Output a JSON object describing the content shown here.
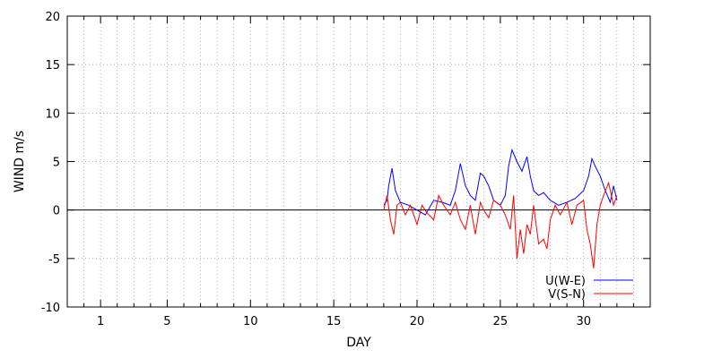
{
  "chart_data": {
    "type": "line",
    "xlabel": "DAY",
    "ylabel": "WIND m/s",
    "xlim": [
      -1,
      34
    ],
    "ylim": [
      -10,
      20
    ],
    "x_ticks": [
      1,
      5,
      10,
      15,
      20,
      25,
      30
    ],
    "y_ticks": [
      -10,
      -5,
      0,
      5,
      10,
      15,
      20
    ],
    "x_minor_step": 1,
    "y_grid_step": 5,
    "grid": true,
    "zero_line": true,
    "legend_position": "bottom-right",
    "series": [
      {
        "name": "U(W-E)",
        "color": "#0000ff",
        "x": [
          18.0,
          18.2,
          18.3,
          18.5,
          18.7,
          19.0,
          19.5,
          20.0,
          20.5,
          21.0,
          21.5,
          22.0,
          22.3,
          22.6,
          22.9,
          23.2,
          23.5,
          23.8,
          24.0,
          24.3,
          24.6,
          25.0,
          25.3,
          25.5,
          25.7,
          26.0,
          26.3,
          26.6,
          26.8,
          27.0,
          27.3,
          27.6,
          28.0,
          28.5,
          29.0,
          29.5,
          30.0,
          30.3,
          30.5,
          30.7,
          31.0,
          31.3,
          31.6,
          31.8,
          32.0
        ],
        "values": [
          0.5,
          1.0,
          2.5,
          4.3,
          2.0,
          0.8,
          0.5,
          0.0,
          -0.5,
          1.0,
          0.8,
          0.5,
          2.0,
          4.8,
          2.5,
          1.5,
          1.0,
          3.8,
          3.5,
          2.5,
          1.0,
          0.5,
          1.5,
          4.5,
          6.2,
          5.0,
          4.0,
          5.5,
          3.5,
          2.0,
          1.5,
          1.8,
          1.0,
          0.5,
          0.8,
          1.2,
          2.0,
          3.5,
          5.3,
          4.5,
          3.5,
          2.0,
          0.8,
          2.5,
          1.0
        ]
      },
      {
        "name": "V(S-N)",
        "color": "#ff0000",
        "x": [
          18.0,
          18.2,
          18.4,
          18.6,
          18.8,
          19.0,
          19.3,
          19.6,
          20.0,
          20.3,
          20.6,
          21.0,
          21.3,
          21.6,
          22.0,
          22.3,
          22.6,
          22.9,
          23.2,
          23.5,
          23.8,
          24.0,
          24.3,
          24.6,
          25.0,
          25.3,
          25.6,
          25.8,
          26.0,
          26.2,
          26.4,
          26.6,
          26.8,
          27.0,
          27.3,
          27.6,
          27.8,
          28.0,
          28.3,
          28.6,
          29.0,
          29.3,
          29.6,
          30.0,
          30.2,
          30.4,
          30.6,
          30.8,
          31.0,
          31.2,
          31.5,
          31.8,
          32.0
        ],
        "values": [
          0.0,
          1.5,
          -1.0,
          -2.5,
          0.5,
          0.8,
          -0.5,
          0.5,
          -1.5,
          0.5,
          -0.3,
          -1.0,
          1.5,
          0.5,
          -0.5,
          0.8,
          -1.0,
          -2.0,
          0.5,
          -2.5,
          0.8,
          0.0,
          -0.8,
          1.0,
          0.5,
          -0.5,
          -2.0,
          1.5,
          -5.0,
          -2.0,
          -4.5,
          -1.5,
          -2.5,
          0.5,
          -3.5,
          -3.0,
          -4.0,
          -1.0,
          0.5,
          -0.5,
          0.8,
          -1.5,
          0.5,
          1.0,
          -2.0,
          -3.5,
          -6.0,
          -1.5,
          0.5,
          1.5,
          2.8,
          0.5,
          1.5
        ]
      }
    ]
  }
}
